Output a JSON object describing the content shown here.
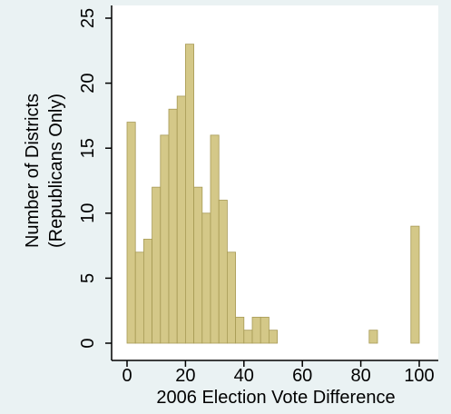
{
  "chart_data": {
    "type": "bar",
    "xlabel": "2006 Election Vote Difference",
    "ylabel_lines": [
      "Number of Districts",
      "(Republicans Only)"
    ],
    "xlim": [
      0,
      100
    ],
    "ylim": [
      0,
      25
    ],
    "xticks": [
      0,
      20,
      40,
      60,
      80,
      100
    ],
    "yticks": [
      0,
      5,
      10,
      15,
      20,
      25
    ],
    "bin_width": 2.857,
    "bins": [
      {
        "x": 1.43,
        "value": 17
      },
      {
        "x": 4.29,
        "value": 7
      },
      {
        "x": 7.14,
        "value": 8
      },
      {
        "x": 10.0,
        "value": 12
      },
      {
        "x": 12.86,
        "value": 16
      },
      {
        "x": 15.71,
        "value": 18
      },
      {
        "x": 18.57,
        "value": 19
      },
      {
        "x": 21.43,
        "value": 23
      },
      {
        "x": 24.29,
        "value": 12
      },
      {
        "x": 27.14,
        "value": 10
      },
      {
        "x": 30.0,
        "value": 16
      },
      {
        "x": 32.86,
        "value": 11
      },
      {
        "x": 35.71,
        "value": 7
      },
      {
        "x": 38.57,
        "value": 2
      },
      {
        "x": 41.43,
        "value": 1
      },
      {
        "x": 44.29,
        "value": 2
      },
      {
        "x": 47.14,
        "value": 2
      },
      {
        "x": 50.0,
        "value": 1
      },
      {
        "x": 84.29,
        "value": 1
      },
      {
        "x": 98.57,
        "value": 9
      }
    ],
    "grid": false,
    "legend": "none",
    "colors": {
      "bar_fill": "#d4c888",
      "bar_edge": "#a79a55",
      "plot_bg": "#ffffff",
      "page_bg": "#eaf2f3",
      "axis": "#000000"
    }
  }
}
